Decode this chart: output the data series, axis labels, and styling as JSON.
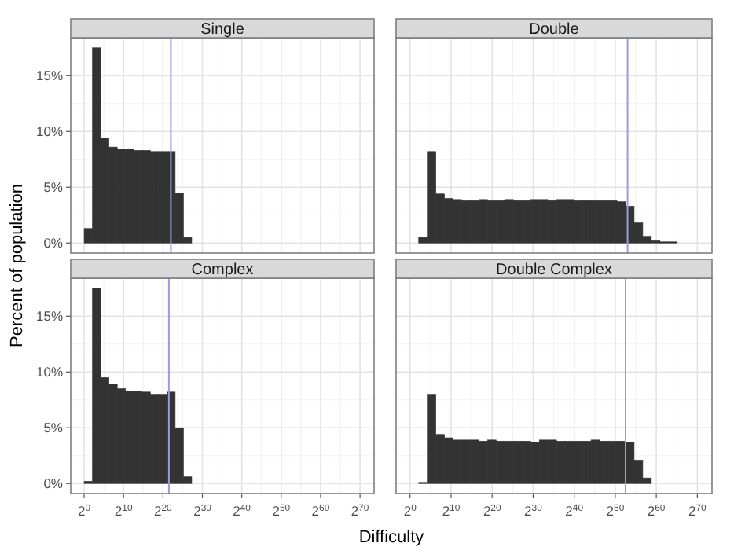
{
  "chart_data": [
    {
      "type": "histogram",
      "title": "Single",
      "ylabel": "Percent of population",
      "log": "x",
      "bins": [
        1,
        4.29,
        18.4,
        78.8,
        338,
        1450,
        6210,
        26600,
        114000,
        489000,
        2100000,
        8990000,
        38500000,
        165000000
      ],
      "values": [
        1.3,
        17.5,
        9.4,
        8.6,
        8.4,
        8.4,
        8.3,
        8.3,
        8.2,
        8.2,
        8.2,
        4.5,
        0.5
      ],
      "color": "#333333",
      "ref_lines": [
        {
          "axis": "x",
          "value": 4194304,
          "color": "#9a9ae6"
        }
      ],
      "xlim": [
        0.0947,
        1.4e+22
      ],
      "xticks": [
        1,
        1024,
        1048576,
        1073741824,
        1099511627776,
        1125899906842624,
        1152921504606846976,
        1180591620717411303424
      ],
      "ylim": [
        -0.9,
        18.4
      ],
      "yticks": [
        {
          "value": 0,
          "label": "0%"
        },
        {
          "value": 5,
          "label": "5%"
        },
        {
          "value": 10,
          "label": "10%"
        },
        {
          "value": 15,
          "label": "15%"
        }
      ],
      "grid": true,
      "tick_labels": "y"
    },
    {
      "type": "histogram",
      "title": "Double",
      "log": "x",
      "bins": [
        4.29,
        18.4,
        78.8,
        338,
        1450,
        6210,
        26600,
        114000,
        489000,
        2100000,
        8990000,
        38500000,
        165000000,
        708000000,
        3040000000,
        13000000000,
        55800000000,
        239000000000,
        1030000000000.0,
        4400000000000.0,
        18900000000000.0,
        80800000000000.0,
        347000000000000.0,
        1490000000000000.0,
        6370000000000000.0,
        2.73e+16,
        1.17e+17,
        5.02e+17,
        2.15e+18,
        9.22e+18,
        3.95e+19
      ],
      "values": [
        0.5,
        8.2,
        4.4,
        4.0,
        3.9,
        3.8,
        3.8,
        3.9,
        3.8,
        3.8,
        3.9,
        3.8,
        3.8,
        3.9,
        3.9,
        3.8,
        3.9,
        3.9,
        3.8,
        3.8,
        3.8,
        3.8,
        3.8,
        3.7,
        3.3,
        1.8,
        0.6,
        0.2,
        0.1,
        0.1
      ],
      "color": "#333333",
      "ref_lines": [
        {
          "axis": "x",
          "value": 9007199254740992,
          "color": "#9a9ae6"
        }
      ],
      "xlim": [
        0.0947,
        1.4e+22
      ],
      "xticks": [
        1,
        1024,
        1048576,
        1073741824,
        1099511627776,
        1125899906842624,
        1152921504606846976,
        1180591620717411303424
      ],
      "ylim": [
        -0.9,
        18.4
      ],
      "yticks": [
        0,
        5,
        10,
        15
      ],
      "grid": true,
      "tick_labels": false
    },
    {
      "type": "histogram",
      "title": "Complex",
      "xlabel": "Difficulty",
      "log": "x",
      "bins": [
        1,
        4.29,
        18.4,
        78.8,
        338,
        1450,
        6210,
        26600,
        114000,
        489000,
        2100000,
        8990000,
        38500000,
        165000000
      ],
      "values": [
        0.2,
        17.5,
        9.5,
        8.9,
        8.5,
        8.3,
        8.3,
        8.2,
        8.0,
        8.0,
        8.2,
        5.0,
        0.6
      ],
      "color": "#333333",
      "ref_lines": [
        {
          "axis": "x",
          "value": 2970000,
          "color": "#9a9ae6"
        }
      ],
      "xlim": [
        0.0947,
        1.4e+22
      ],
      "xticks": [
        {
          "value": 1,
          "label": "2$^{0}$"
        },
        {
          "value": 1024,
          "label": "2$^{10}$"
        },
        {
          "value": 1048576,
          "label": "2$^{20}$"
        },
        {
          "value": 1073741824,
          "label": "2$^{30}$"
        },
        {
          "value": 1099511627776,
          "label": "2$^{40}$"
        },
        {
          "value": 1125899906842624,
          "label": "2$^{50}$"
        },
        {
          "value": 1152921504606846976,
          "label": "2$^{60}$"
        },
        {
          "value": 1180591620717411303424,
          "label": "2$^{70}$"
        }
      ],
      "ylim": [
        -0.9,
        18.4
      ],
      "yticks": [
        {
          "value": 0,
          "label": "0%"
        },
        {
          "value": 5,
          "label": "5%"
        },
        {
          "value": 10,
          "label": "10%"
        },
        {
          "value": 15,
          "label": "15%"
        }
      ],
      "grid": true
    },
    {
      "type": "histogram",
      "title": "Double Complex",
      "log": "x",
      "bins": [
        4.29,
        18.4,
        78.8,
        338,
        1450,
        6210,
        26600,
        114000,
        489000,
        2100000,
        8990000,
        38500000,
        165000000,
        708000000,
        3040000000,
        13000000000,
        55800000000,
        239000000000,
        1030000000000.0,
        4400000000000.0,
        18900000000000.0,
        80800000000000.0,
        347000000000000.0,
        1490000000000000.0,
        6370000000000000.0,
        2.73e+16,
        1.17e+17,
        5.02e+17
      ],
      "values": [
        0.1,
        8.0,
        4.4,
        4.1,
        3.9,
        3.9,
        3.9,
        3.8,
        3.9,
        3.8,
        3.8,
        3.8,
        3.8,
        3.7,
        3.9,
        3.9,
        3.8,
        3.8,
        3.8,
        3.8,
        3.9,
        3.8,
        3.8,
        3.8,
        3.7,
        2.1,
        0.5
      ],
      "color": "#333333",
      "ref_lines": [
        {
          "axis": "x",
          "value": 6370000000000000.0,
          "color": "#9a9ae6"
        }
      ],
      "xlim": [
        0.0947,
        1.4e+22
      ],
      "xticks": [
        {
          "value": 1,
          "label": "2$^{0}$"
        },
        {
          "value": 1024,
          "label": "2$^{10}$"
        },
        {
          "value": 1048576,
          "label": "2$^{20}$"
        },
        {
          "value": 1073741824,
          "label": "2$^{30}$"
        },
        {
          "value": 1099511627776,
          "label": "2$^{40}$"
        },
        {
          "value": 1125899906842624,
          "label": "2$^{50}$"
        },
        {
          "value": 1152921504606846976,
          "label": "2$^{60}$"
        },
        {
          "value": 1180591620717411303424,
          "label": "2$^{70}$"
        }
      ],
      "ylim": [
        -0.9,
        18.4
      ],
      "yticks": [
        0,
        5,
        10,
        15
      ],
      "grid": true,
      "tick_labels": "x"
    }
  ]
}
